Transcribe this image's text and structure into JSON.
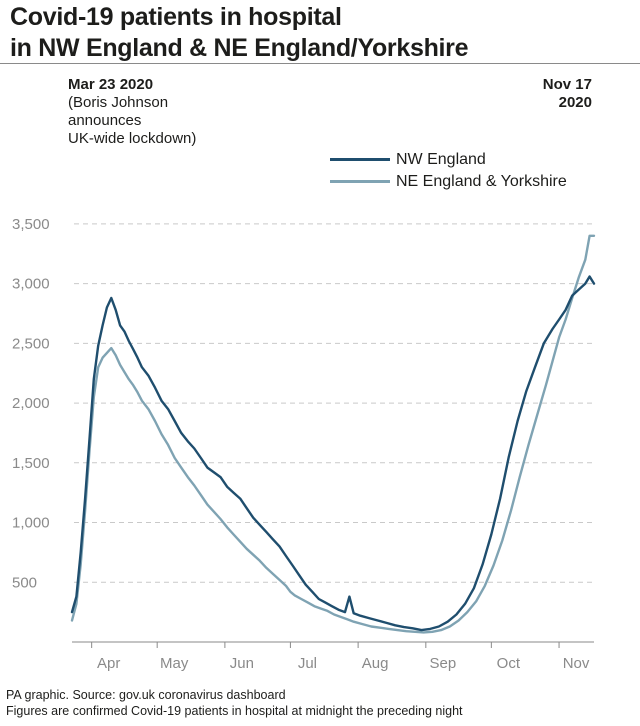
{
  "header": {
    "title_line1": "Covid-19 patients in hospital",
    "title_line2": "in NW England & NE England/Yorkshire"
  },
  "annotations": {
    "start_date": "Mar 23 2020",
    "start_note": [
      "(Boris Johnson",
      "announces",
      "UK-wide lockdown)"
    ],
    "end_date_line1": "Nov 17",
    "end_date_line2": "2020"
  },
  "footer": {
    "source": "PA graphic. Source: gov.uk coronavirus dashboard",
    "note": "Figures are confirmed Covid-19 patients in hospital at midnight the preceding night"
  },
  "colors": {
    "nw": "#1f4e6e",
    "ne": "#7fa3b3",
    "grid": "#c9c9c9",
    "tick_text": "#8a8a8a",
    "axis": "#8a8a8a"
  },
  "chart_data": {
    "type": "line",
    "title": "Covid-19 patients in hospital in NW England & NE England/Yorkshire",
    "xlabel": "",
    "ylabel": "",
    "x_range": [
      "2020-03-23",
      "2020-11-17"
    ],
    "ylim": [
      0,
      3700
    ],
    "y_ticks": [
      500,
      1000,
      1500,
      2000,
      2500,
      3000,
      3500
    ],
    "y_tick_labels": [
      "500",
      "1,000",
      "1,500",
      "2,000",
      "2,500",
      "3,000",
      "3,500"
    ],
    "month_ticks": [
      {
        "label": "Apr",
        "date": "2020-04-01"
      },
      {
        "label": "May",
        "date": "2020-05-01"
      },
      {
        "label": "Jun",
        "date": "2020-06-01"
      },
      {
        "label": "Jul",
        "date": "2020-07-01"
      },
      {
        "label": "Aug",
        "date": "2020-08-01"
      },
      {
        "label": "Sep",
        "date": "2020-09-01"
      },
      {
        "label": "Oct",
        "date": "2020-10-01"
      },
      {
        "label": "Nov",
        "date": "2020-11-01"
      }
    ],
    "grid": true,
    "legend_position": "top-right",
    "series": [
      {
        "name": "NW England",
        "color": "#1f4e6e",
        "points": [
          [
            "2020-03-23",
            250
          ],
          [
            "2020-03-25",
            380
          ],
          [
            "2020-03-27",
            750
          ],
          [
            "2020-03-29",
            1200
          ],
          [
            "2020-03-31",
            1700
          ],
          [
            "2020-04-02",
            2200
          ],
          [
            "2020-04-04",
            2480
          ],
          [
            "2020-04-06",
            2650
          ],
          [
            "2020-04-08",
            2800
          ],
          [
            "2020-04-10",
            2880
          ],
          [
            "2020-04-12",
            2780
          ],
          [
            "2020-04-14",
            2650
          ],
          [
            "2020-04-16",
            2600
          ],
          [
            "2020-04-18",
            2520
          ],
          [
            "2020-04-20",
            2450
          ],
          [
            "2020-04-22",
            2380
          ],
          [
            "2020-04-24",
            2300
          ],
          [
            "2020-04-27",
            2230
          ],
          [
            "2020-04-30",
            2130
          ],
          [
            "2020-05-03",
            2020
          ],
          [
            "2020-05-06",
            1950
          ],
          [
            "2020-05-09",
            1850
          ],
          [
            "2020-05-12",
            1750
          ],
          [
            "2020-05-15",
            1680
          ],
          [
            "2020-05-18",
            1620
          ],
          [
            "2020-05-21",
            1540
          ],
          [
            "2020-05-24",
            1460
          ],
          [
            "2020-05-27",
            1420
          ],
          [
            "2020-05-30",
            1380
          ],
          [
            "2020-06-02",
            1300
          ],
          [
            "2020-06-05",
            1250
          ],
          [
            "2020-06-08",
            1200
          ],
          [
            "2020-06-11",
            1120
          ],
          [
            "2020-06-14",
            1040
          ],
          [
            "2020-06-17",
            980
          ],
          [
            "2020-06-20",
            920
          ],
          [
            "2020-06-23",
            860
          ],
          [
            "2020-06-26",
            800
          ],
          [
            "2020-06-29",
            720
          ],
          [
            "2020-07-02",
            640
          ],
          [
            "2020-07-05",
            560
          ],
          [
            "2020-07-08",
            480
          ],
          [
            "2020-07-11",
            420
          ],
          [
            "2020-07-14",
            360
          ],
          [
            "2020-07-17",
            330
          ],
          [
            "2020-07-20",
            300
          ],
          [
            "2020-07-23",
            270
          ],
          [
            "2020-07-26",
            250
          ],
          [
            "2020-07-28",
            380
          ],
          [
            "2020-07-30",
            240
          ],
          [
            "2020-08-02",
            220
          ],
          [
            "2020-08-06",
            200
          ],
          [
            "2020-08-10",
            180
          ],
          [
            "2020-08-14",
            160
          ],
          [
            "2020-08-18",
            140
          ],
          [
            "2020-08-22",
            125
          ],
          [
            "2020-08-26",
            115
          ],
          [
            "2020-08-30",
            100
          ],
          [
            "2020-09-03",
            110
          ],
          [
            "2020-09-07",
            130
          ],
          [
            "2020-09-11",
            170
          ],
          [
            "2020-09-15",
            230
          ],
          [
            "2020-09-19",
            320
          ],
          [
            "2020-09-23",
            450
          ],
          [
            "2020-09-27",
            650
          ],
          [
            "2020-10-01",
            900
          ],
          [
            "2020-10-05",
            1200
          ],
          [
            "2020-10-09",
            1550
          ],
          [
            "2020-10-13",
            1850
          ],
          [
            "2020-10-17",
            2100
          ],
          [
            "2020-10-21",
            2300
          ],
          [
            "2020-10-25",
            2500
          ],
          [
            "2020-10-29",
            2620
          ],
          [
            "2020-11-01",
            2700
          ],
          [
            "2020-11-04",
            2780
          ],
          [
            "2020-11-07",
            2900
          ],
          [
            "2020-11-10",
            2950
          ],
          [
            "2020-11-13",
            3000
          ],
          [
            "2020-11-15",
            3060
          ],
          [
            "2020-11-17",
            3000
          ]
        ]
      },
      {
        "name": "NE England & Yorkshire",
        "color": "#7fa3b3",
        "points": [
          [
            "2020-03-23",
            180
          ],
          [
            "2020-03-25",
            320
          ],
          [
            "2020-03-27",
            650
          ],
          [
            "2020-03-29",
            1100
          ],
          [
            "2020-03-31",
            1600
          ],
          [
            "2020-04-02",
            2050
          ],
          [
            "2020-04-04",
            2300
          ],
          [
            "2020-04-06",
            2380
          ],
          [
            "2020-04-08",
            2420
          ],
          [
            "2020-04-10",
            2460
          ],
          [
            "2020-04-12",
            2400
          ],
          [
            "2020-04-14",
            2320
          ],
          [
            "2020-04-16",
            2260
          ],
          [
            "2020-04-18",
            2200
          ],
          [
            "2020-04-20",
            2150
          ],
          [
            "2020-04-22",
            2090
          ],
          [
            "2020-04-24",
            2020
          ],
          [
            "2020-04-27",
            1950
          ],
          [
            "2020-04-30",
            1850
          ],
          [
            "2020-05-03",
            1740
          ],
          [
            "2020-05-06",
            1650
          ],
          [
            "2020-05-09",
            1540
          ],
          [
            "2020-05-12",
            1460
          ],
          [
            "2020-05-15",
            1380
          ],
          [
            "2020-05-18",
            1310
          ],
          [
            "2020-05-21",
            1230
          ],
          [
            "2020-05-24",
            1150
          ],
          [
            "2020-05-27",
            1090
          ],
          [
            "2020-05-30",
            1030
          ],
          [
            "2020-06-02",
            960
          ],
          [
            "2020-06-05",
            900
          ],
          [
            "2020-06-08",
            840
          ],
          [
            "2020-06-11",
            780
          ],
          [
            "2020-06-14",
            730
          ],
          [
            "2020-06-17",
            680
          ],
          [
            "2020-06-20",
            620
          ],
          [
            "2020-06-23",
            570
          ],
          [
            "2020-06-26",
            520
          ],
          [
            "2020-06-29",
            470
          ],
          [
            "2020-07-01",
            420
          ],
          [
            "2020-07-03",
            390
          ],
          [
            "2020-07-06",
            360
          ],
          [
            "2020-07-09",
            330
          ],
          [
            "2020-07-12",
            300
          ],
          [
            "2020-07-15",
            280
          ],
          [
            "2020-07-18",
            260
          ],
          [
            "2020-07-21",
            230
          ],
          [
            "2020-07-24",
            210
          ],
          [
            "2020-07-27",
            190
          ],
          [
            "2020-07-30",
            170
          ],
          [
            "2020-08-03",
            150
          ],
          [
            "2020-08-07",
            130
          ],
          [
            "2020-08-11",
            120
          ],
          [
            "2020-08-15",
            110
          ],
          [
            "2020-08-19",
            100
          ],
          [
            "2020-08-23",
            90
          ],
          [
            "2020-08-27",
            85
          ],
          [
            "2020-08-31",
            80
          ],
          [
            "2020-09-04",
            85
          ],
          [
            "2020-09-08",
            100
          ],
          [
            "2020-09-12",
            130
          ],
          [
            "2020-09-16",
            180
          ],
          [
            "2020-09-20",
            250
          ],
          [
            "2020-09-24",
            340
          ],
          [
            "2020-09-28",
            470
          ],
          [
            "2020-10-02",
            640
          ],
          [
            "2020-10-06",
            850
          ],
          [
            "2020-10-10",
            1100
          ],
          [
            "2020-10-14",
            1380
          ],
          [
            "2020-10-18",
            1650
          ],
          [
            "2020-10-22",
            1900
          ],
          [
            "2020-10-26",
            2150
          ],
          [
            "2020-10-29",
            2350
          ],
          [
            "2020-11-01",
            2550
          ],
          [
            "2020-11-04",
            2700
          ],
          [
            "2020-11-07",
            2880
          ],
          [
            "2020-11-10",
            3050
          ],
          [
            "2020-11-13",
            3200
          ],
          [
            "2020-11-15",
            3400
          ],
          [
            "2020-11-17",
            3400
          ]
        ]
      }
    ]
  }
}
